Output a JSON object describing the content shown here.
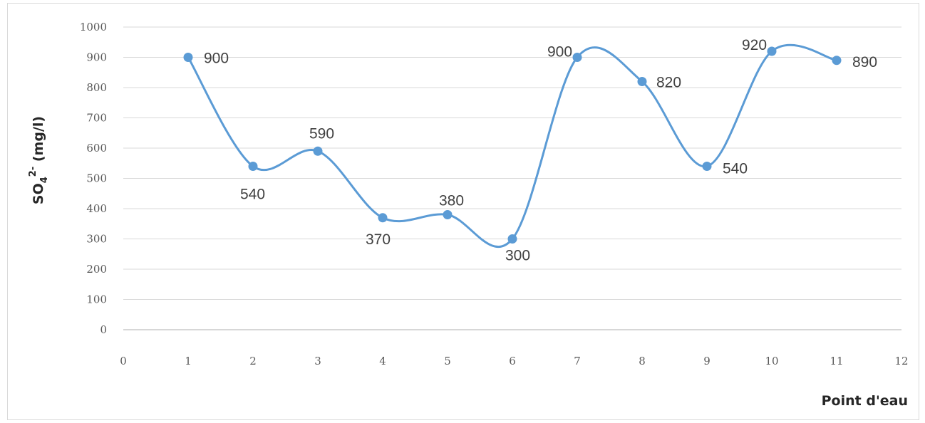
{
  "chart_data": {
    "type": "scatter",
    "style": "smoothed-line-with-markers",
    "xlabel": "Point d'eau",
    "ylabel_main": "SO",
    "ylabel_sub": "4",
    "ylabel_sup": "2-",
    "ylabel_unit": " (mg/l)",
    "xlim": [
      0,
      12
    ],
    "ylim": [
      0,
      1000
    ],
    "x_ticks": [
      "0",
      "1",
      "2",
      "3",
      "4",
      "5",
      "6",
      "7",
      "8",
      "9",
      "10",
      "11",
      "12"
    ],
    "y_ticks": [
      "0",
      "100",
      "200",
      "300",
      "400",
      "500",
      "600",
      "700",
      "800",
      "900",
      "1000"
    ],
    "grid": "horizontal",
    "legend": "none",
    "series": [
      {
        "color": "#5b9bd5",
        "points": [
          {
            "x": 1,
            "y": 900,
            "label": "900"
          },
          {
            "x": 2,
            "y": 540,
            "label": "540"
          },
          {
            "x": 3,
            "y": 590,
            "label": "590"
          },
          {
            "x": 4,
            "y": 370,
            "label": "370"
          },
          {
            "x": 5,
            "y": 380,
            "label": "380"
          },
          {
            "x": 6,
            "y": 300,
            "label": "300"
          },
          {
            "x": 7,
            "y": 900,
            "label": "900"
          },
          {
            "x": 8,
            "y": 820,
            "label": "820"
          },
          {
            "x": 9,
            "y": 540,
            "label": "540"
          },
          {
            "x": 10,
            "y": 920,
            "label": "920"
          },
          {
            "x": 11,
            "y": 890,
            "label": "890"
          }
        ]
      }
    ]
  }
}
